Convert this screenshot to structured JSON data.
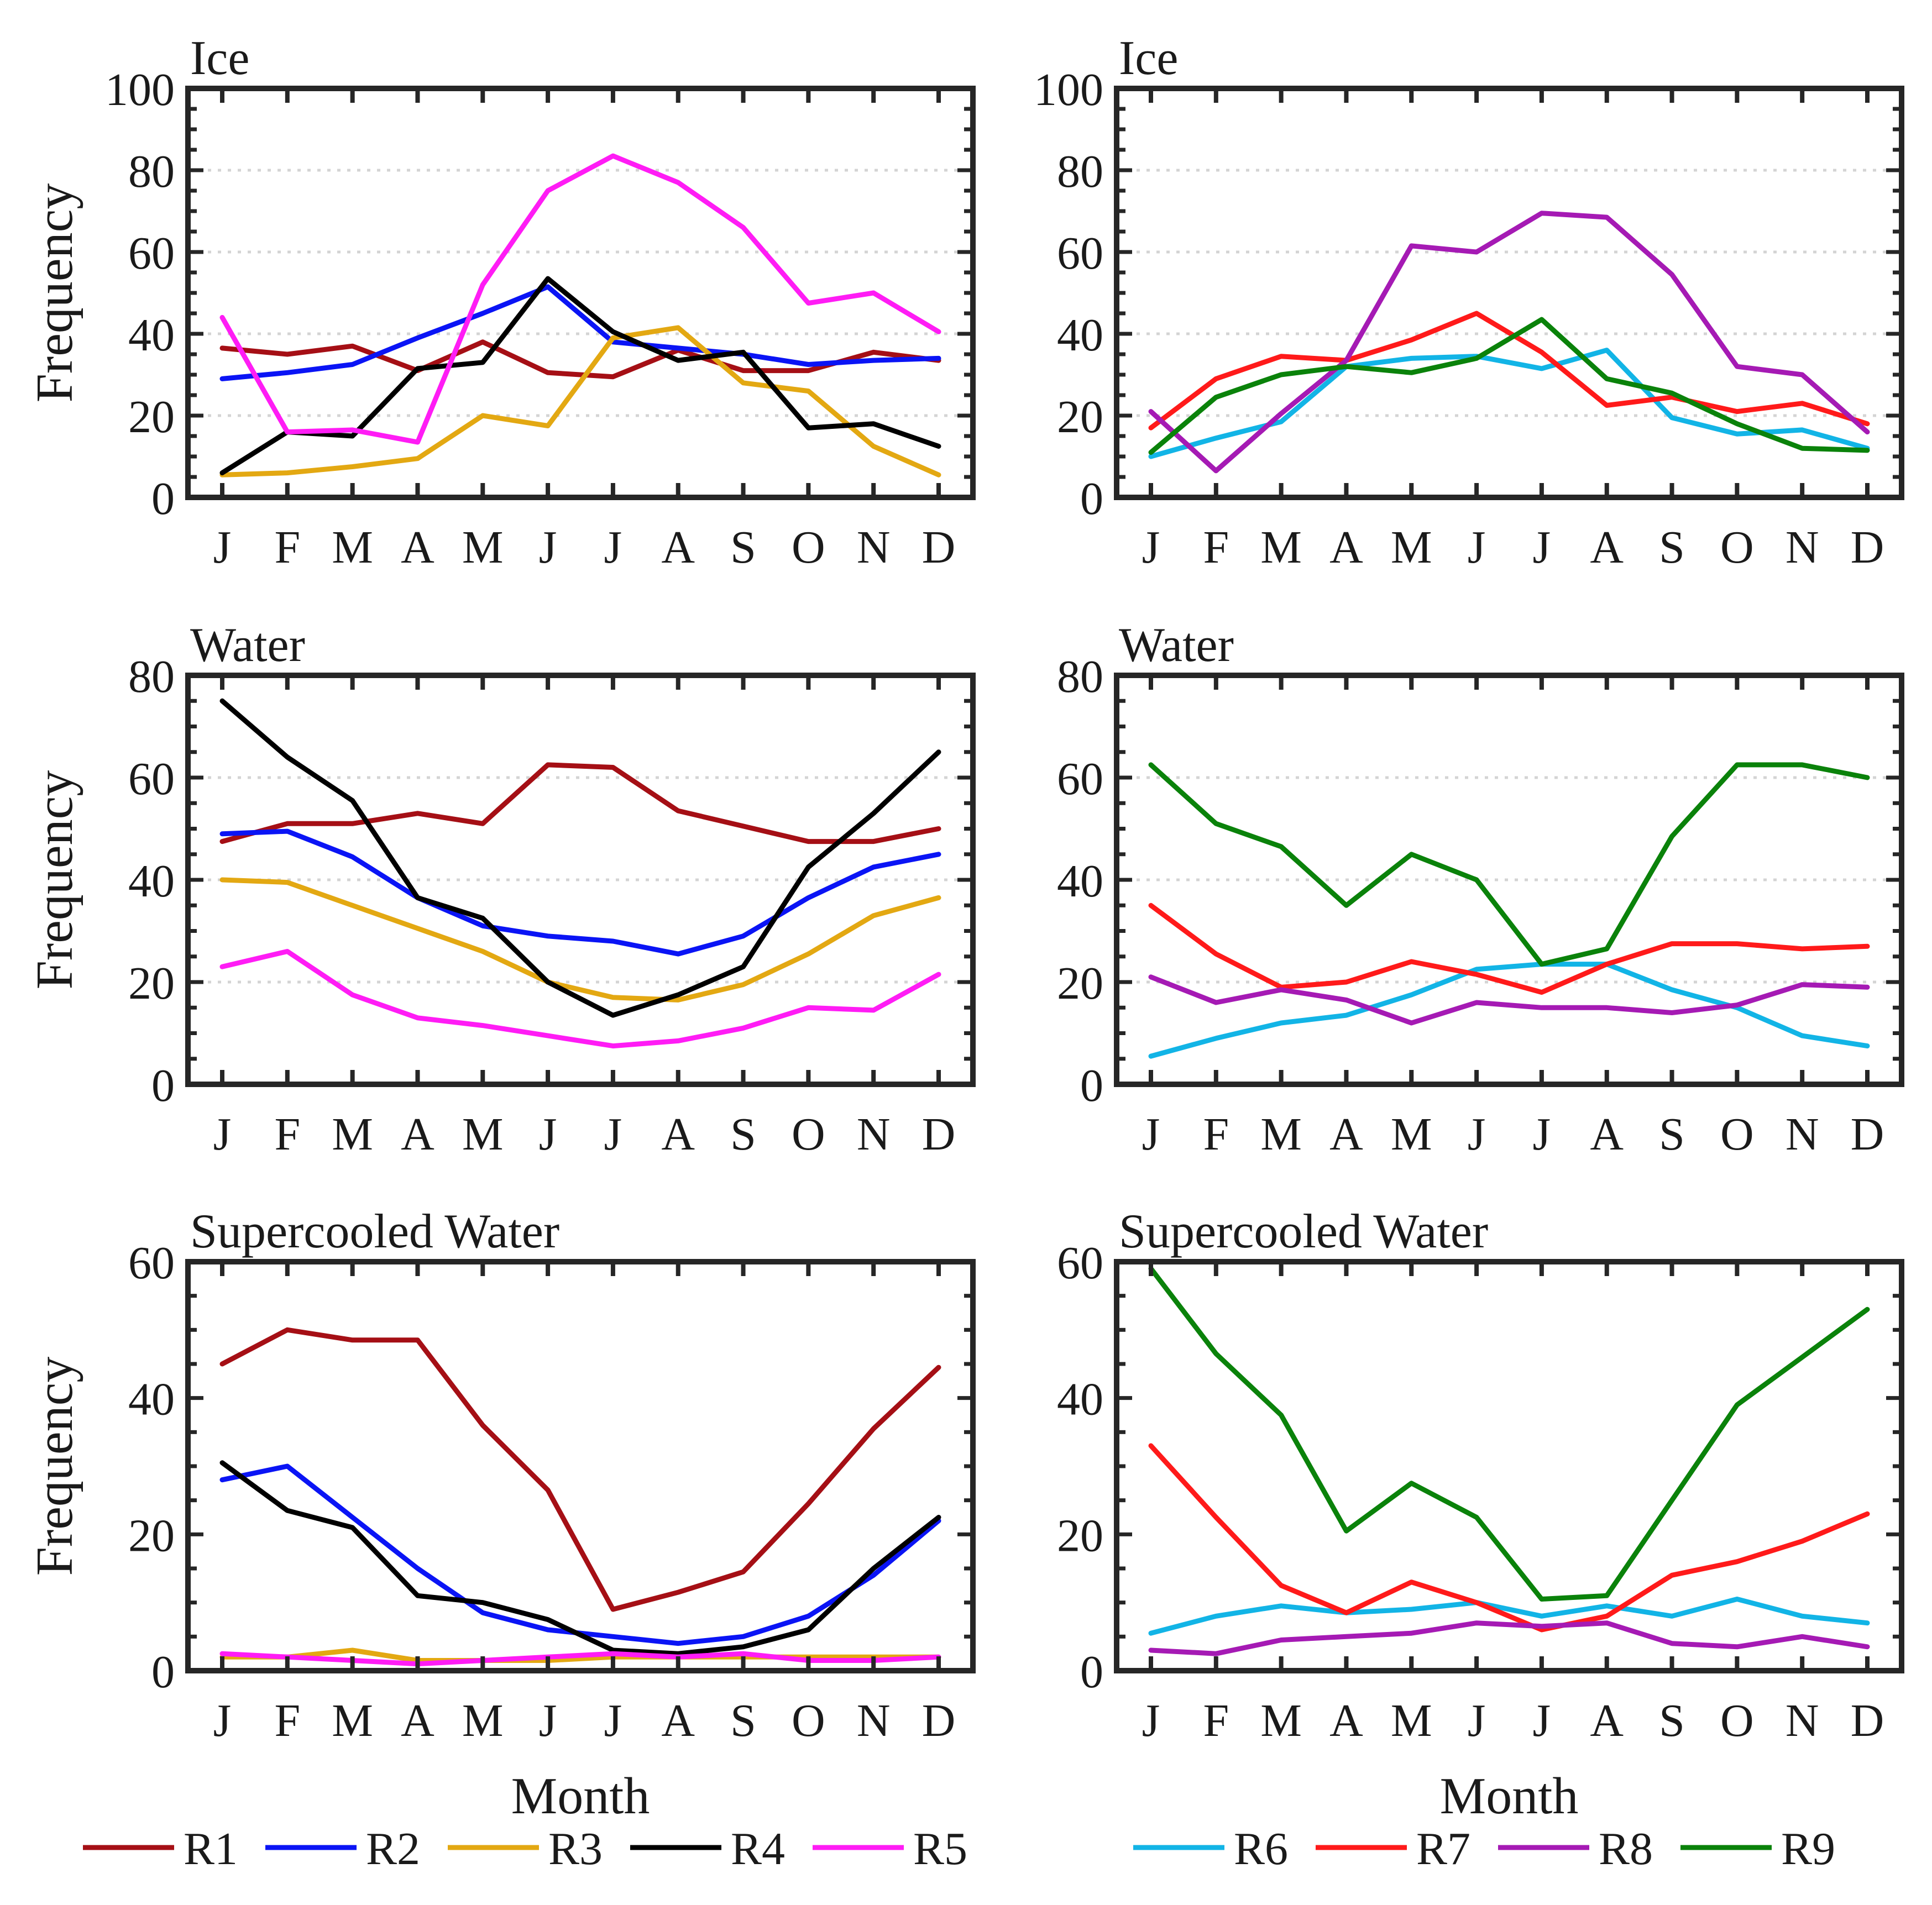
{
  "figure": {
    "months": [
      "J",
      "F",
      "M",
      "A",
      "M",
      "J",
      "J",
      "A",
      "S",
      "O",
      "N",
      "D"
    ],
    "xlabel": "Month",
    "ylabel": "Frequency"
  },
  "series_styles": {
    "R1": "#A50F15",
    "R2": "#0A14F5",
    "R3": "#E3A812",
    "R4": "#000000",
    "R5": "#FF1CF5",
    "R6": "#12B4E6",
    "R7": "#FF1A1A",
    "R8": "#A51AB4",
    "R9": "#0A820A"
  },
  "legend_left": [
    "R1",
    "R2",
    "R3",
    "R4",
    "R5"
  ],
  "legend_right": [
    "R6",
    "R7",
    "R8",
    "R9"
  ],
  "chart_data": [
    {
      "type": "line",
      "title": "Ice",
      "xlabel": "",
      "ylabel": "Frequency",
      "categories": [
        "J",
        "F",
        "M",
        "A",
        "M",
        "J",
        "J",
        "A",
        "S",
        "O",
        "N",
        "D"
      ],
      "ylim": [
        0,
        100
      ],
      "yticks": [
        0,
        20,
        40,
        60,
        80,
        100
      ],
      "grid": "horizontal",
      "series": [
        {
          "name": "R1",
          "values": [
            36.5,
            35,
            37,
            31,
            38,
            30.5,
            29.5,
            36,
            31,
            31,
            35.5,
            33.5
          ]
        },
        {
          "name": "R2",
          "values": [
            29,
            30.5,
            32.5,
            39,
            45,
            51.5,
            38,
            36.5,
            35,
            32.5,
            33.5,
            34
          ]
        },
        {
          "name": "R3",
          "values": [
            5.5,
            6,
            7.5,
            9.5,
            20,
            17.5,
            39,
            41.5,
            28,
            26,
            12.5,
            5.5
          ]
        },
        {
          "name": "R4",
          "values": [
            6,
            16,
            15,
            31.5,
            33,
            53.5,
            40.5,
            33.5,
            35.5,
            17,
            18,
            12.5
          ]
        },
        {
          "name": "R5",
          "values": [
            44,
            16,
            16.5,
            13.5,
            52,
            75,
            83.5,
            77,
            66,
            47.5,
            50,
            40.5
          ]
        }
      ]
    },
    {
      "type": "line",
      "title": "Ice",
      "xlabel": "",
      "ylabel": "",
      "categories": [
        "J",
        "F",
        "M",
        "A",
        "M",
        "J",
        "J",
        "A",
        "S",
        "O",
        "N",
        "D"
      ],
      "ylim": [
        0,
        100
      ],
      "yticks": [
        0,
        20,
        40,
        60,
        80,
        100
      ],
      "grid": "horizontal",
      "series": [
        {
          "name": "R6",
          "values": [
            10,
            14.5,
            18.5,
            32,
            34,
            34.5,
            31.5,
            36,
            19.5,
            15.5,
            16.5,
            12
          ]
        },
        {
          "name": "R7",
          "values": [
            17,
            29,
            34.5,
            33.5,
            38.5,
            45,
            35.5,
            22.5,
            24.5,
            21,
            23,
            18
          ]
        },
        {
          "name": "R8",
          "values": [
            21,
            6.5,
            20.5,
            33.5,
            61.5,
            60,
            69.5,
            68.5,
            54.5,
            32,
            30,
            16
          ]
        },
        {
          "name": "R9",
          "values": [
            11,
            24.5,
            30,
            32,
            30.5,
            34,
            43.5,
            29,
            25.5,
            18,
            12,
            11.5
          ]
        }
      ]
    },
    {
      "type": "line",
      "title": "Water",
      "xlabel": "",
      "ylabel": "Frequency",
      "categories": [
        "J",
        "F",
        "M",
        "A",
        "M",
        "J",
        "J",
        "A",
        "S",
        "O",
        "N",
        "D"
      ],
      "ylim": [
        0,
        80
      ],
      "yticks": [
        0,
        20,
        40,
        60,
        80
      ],
      "grid": "horizontal",
      "series": [
        {
          "name": "R1",
          "values": [
            47.5,
            51,
            51,
            53,
            51,
            62.5,
            62,
            53.5,
            50.5,
            47.5,
            47.5,
            50
          ]
        },
        {
          "name": "R2",
          "values": [
            49,
            49.5,
            44.5,
            36.5,
            31,
            29,
            28,
            25.5,
            29,
            36.5,
            42.5,
            45
          ]
        },
        {
          "name": "R3",
          "values": [
            40,
            39.5,
            35,
            30.5,
            26,
            20,
            17,
            16.5,
            19.5,
            25.5,
            33,
            36.5
          ]
        },
        {
          "name": "R4",
          "values": [
            75,
            64,
            55.5,
            36.5,
            32.5,
            20,
            13.5,
            17.5,
            23,
            42.5,
            53,
            65
          ]
        },
        {
          "name": "R5",
          "values": [
            23,
            26,
            17.5,
            13,
            11.5,
            9.5,
            7.5,
            8.5,
            11,
            15,
            14.5,
            21.5
          ]
        }
      ]
    },
    {
      "type": "line",
      "title": "Water",
      "xlabel": "",
      "ylabel": "",
      "categories": [
        "J",
        "F",
        "M",
        "A",
        "M",
        "J",
        "J",
        "A",
        "S",
        "O",
        "N",
        "D"
      ],
      "ylim": [
        0,
        80
      ],
      "yticks": [
        0,
        20,
        40,
        60,
        80
      ],
      "grid": "horizontal",
      "series": [
        {
          "name": "R6",
          "values": [
            5.5,
            9,
            12,
            13.5,
            17.5,
            22.5,
            23.5,
            23.5,
            18.5,
            15,
            9.5,
            7.5
          ]
        },
        {
          "name": "R7",
          "values": [
            35,
            25.5,
            19,
            20,
            24,
            21.5,
            18,
            23.5,
            27.5,
            27.5,
            26.5,
            27
          ]
        },
        {
          "name": "R8",
          "values": [
            21,
            16,
            18.5,
            16.5,
            12,
            16,
            15,
            15,
            14,
            15.5,
            19.5,
            19
          ]
        },
        {
          "name": "R9",
          "values": [
            62.5,
            51,
            46.5,
            35,
            45,
            40,
            23.5,
            26.5,
            48.5,
            62.5,
            62.5,
            60
          ]
        }
      ]
    },
    {
      "type": "line",
      "title": "Supercooled Water",
      "xlabel": "Month",
      "ylabel": "Frequency",
      "categories": [
        "J",
        "F",
        "M",
        "A",
        "M",
        "J",
        "J",
        "A",
        "S",
        "O",
        "N",
        "D"
      ],
      "ylim": [
        0,
        60
      ],
      "yticks": [
        0,
        20,
        40,
        60
      ],
      "grid": "none",
      "series": [
        {
          "name": "R1",
          "values": [
            45,
            50,
            48.5,
            48.5,
            36,
            26.5,
            9,
            11.5,
            14.5,
            24.5,
            35.5,
            44.5
          ]
        },
        {
          "name": "R2",
          "values": [
            28,
            30,
            22.5,
            15,
            8.5,
            6,
            5,
            4,
            5,
            8,
            14,
            22
          ]
        },
        {
          "name": "R3",
          "values": [
            2,
            2,
            3,
            1.5,
            1.5,
            1.5,
            2,
            2,
            2,
            2,
            2,
            2
          ]
        },
        {
          "name": "R4",
          "values": [
            30.5,
            23.5,
            21,
            11,
            10,
            7.5,
            3,
            2.5,
            3.5,
            6,
            15,
            22.5
          ]
        },
        {
          "name": "R5",
          "values": [
            2.5,
            2,
            1.5,
            1,
            1.5,
            2,
            2.5,
            2,
            2.5,
            1.5,
            1.5,
            2
          ]
        }
      ]
    },
    {
      "type": "line",
      "title": "Supercooled Water",
      "xlabel": "Month",
      "ylabel": "",
      "categories": [
        "J",
        "F",
        "M",
        "A",
        "M",
        "J",
        "J",
        "A",
        "S",
        "O",
        "N",
        "D"
      ],
      "ylim": [
        0,
        60
      ],
      "yticks": [
        0,
        20,
        40,
        60
      ],
      "grid": "none",
      "series": [
        {
          "name": "R6",
          "values": [
            5.5,
            8,
            9.5,
            8.5,
            9,
            10,
            8,
            9.5,
            8,
            10.5,
            8,
            7
          ]
        },
        {
          "name": "R7",
          "values": [
            33,
            22.5,
            12.5,
            8.5,
            13,
            10,
            6,
            8,
            14,
            16,
            19,
            23
          ]
        },
        {
          "name": "R8",
          "values": [
            3,
            2.5,
            4.5,
            5,
            5.5,
            7,
            6.5,
            7,
            4,
            3.5,
            5,
            3.5
          ]
        },
        {
          "name": "R9",
          "values": [
            59,
            46.5,
            37.5,
            20.5,
            27.5,
            22.5,
            10.5,
            11,
            25,
            39,
            46,
            53
          ]
        }
      ]
    }
  ]
}
